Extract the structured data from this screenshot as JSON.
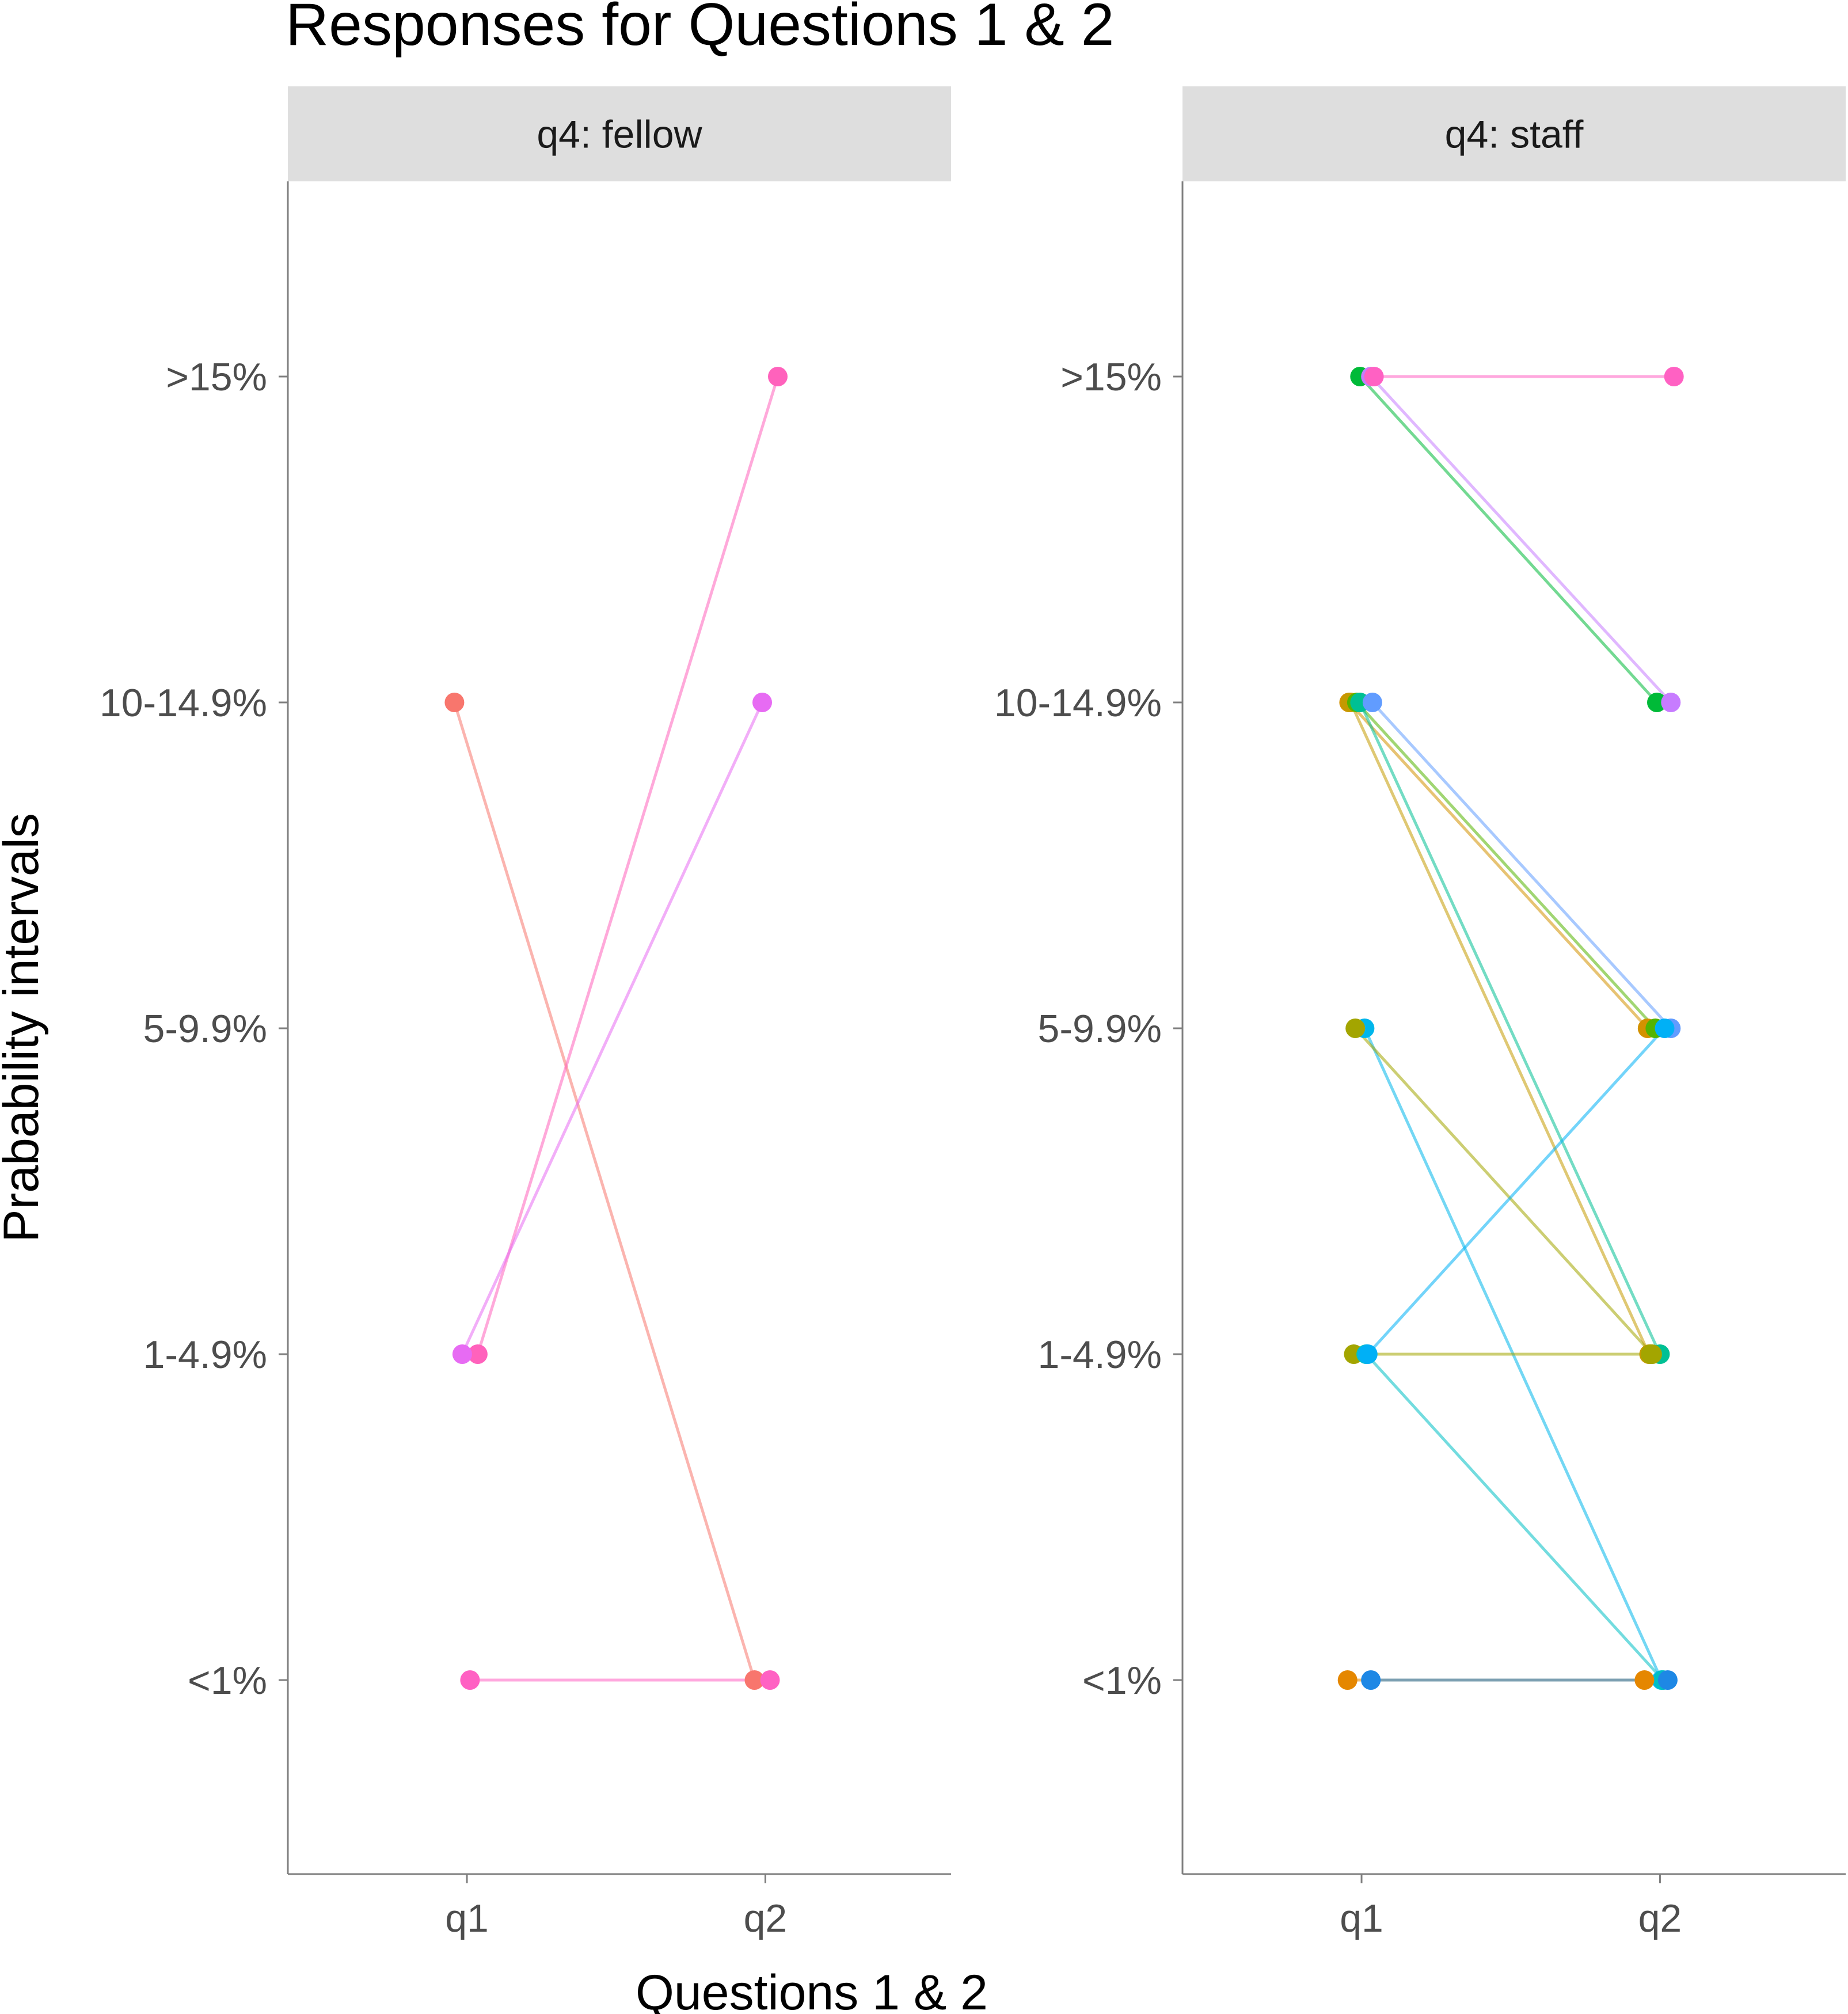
{
  "chart_data": {
    "type": "line",
    "title": "Responses for Questions 1 & 2",
    "xlabel": "Questions 1 & 2",
    "ylabel": "Prabability intervals",
    "x_categories": [
      "q1",
      "q2"
    ],
    "y_categories": [
      "<1%",
      "1-4.9%",
      "5-9.9%",
      "10-14.9%",
      ">15%"
    ],
    "grid": false,
    "legend": "none",
    "panels": [
      {
        "strip_label": "q4: fellow",
        "series": [
          {
            "color": "#F8766D",
            "values": [
              "10-14.9%",
              "<1%"
            ],
            "jitter": [
              -0.08,
              -0.07
            ]
          },
          {
            "color": "#FF62BC",
            "values": [
              "1-4.9%",
              ">15%"
            ],
            "jitter": [
              0.07,
              0.08
            ]
          },
          {
            "color": "#E76BF3",
            "values": [
              "1-4.9%",
              "10-14.9%"
            ],
            "jitter": [
              -0.03,
              -0.02
            ]
          },
          {
            "color": "#FF61C3",
            "values": [
              "<1%",
              "<1%"
            ],
            "jitter": [
              0.02,
              0.03
            ]
          }
        ]
      },
      {
        "strip_label": "q4: staff",
        "series": [
          {
            "color": "#00BA38",
            "values": [
              ">15%",
              "10-14.9%"
            ],
            "jitter": [
              -0.01,
              -0.02
            ]
          },
          {
            "color": "#C77CFF",
            "values": [
              ">15%",
              "10-14.9%"
            ],
            "jitter": [
              0.06,
              0.07
            ]
          },
          {
            "color": "#FF61C3",
            "values": [
              ">15%",
              ">15%"
            ],
            "jitter": [
              0.08,
              0.09
            ]
          },
          {
            "color": "#D39200",
            "values": [
              "10-14.9%",
              "5-9.9%"
            ],
            "jitter": [
              -0.08,
              -0.08
            ]
          },
          {
            "color": "#C49A00",
            "values": [
              "10-14.9%",
              "1-4.9%"
            ],
            "jitter": [
              -0.07,
              -0.07
            ]
          },
          {
            "color": "#53B400",
            "values": [
              "10-14.9%",
              "5-9.9%"
            ],
            "jitter": [
              -0.03,
              -0.03
            ]
          },
          {
            "color": "#00C094",
            "values": [
              "10-14.9%",
              "1-4.9%"
            ],
            "jitter": [
              -0.01,
              0.0
            ]
          },
          {
            "color": "#00B6EB",
            "values": [
              "5-9.9%",
              "<1%"
            ],
            "jitter": [
              0.02,
              0.01
            ]
          },
          {
            "color": "#619CFF",
            "values": [
              "10-14.9%",
              "5-9.9%"
            ],
            "jitter": [
              0.07,
              0.07
            ]
          },
          {
            "color": "#A3A500",
            "values": [
              "5-9.9%",
              "1-4.9%"
            ],
            "jitter": [
              -0.04,
              -0.05
            ]
          },
          {
            "color": "#A3A500",
            "values": [
              "1-4.9%",
              "1-4.9%"
            ],
            "jitter": [
              -0.05,
              -0.06
            ]
          },
          {
            "color": "#00BFC4",
            "values": [
              "1-4.9%",
              "<1%"
            ],
            "jitter": [
              0.03,
              0.02
            ]
          },
          {
            "color": "#00B0F6",
            "values": [
              "1-4.9%",
              "5-9.9%"
            ],
            "jitter": [
              0.04,
              0.03
            ]
          },
          {
            "color": "#E58700",
            "values": [
              "<1%",
              "<1%"
            ],
            "jitter": [
              -0.09,
              -0.1
            ]
          },
          {
            "color": "#1E88E5",
            "values": [
              "<1%",
              "<1%"
            ],
            "jitter": [
              0.06,
              0.05
            ]
          }
        ]
      }
    ]
  }
}
